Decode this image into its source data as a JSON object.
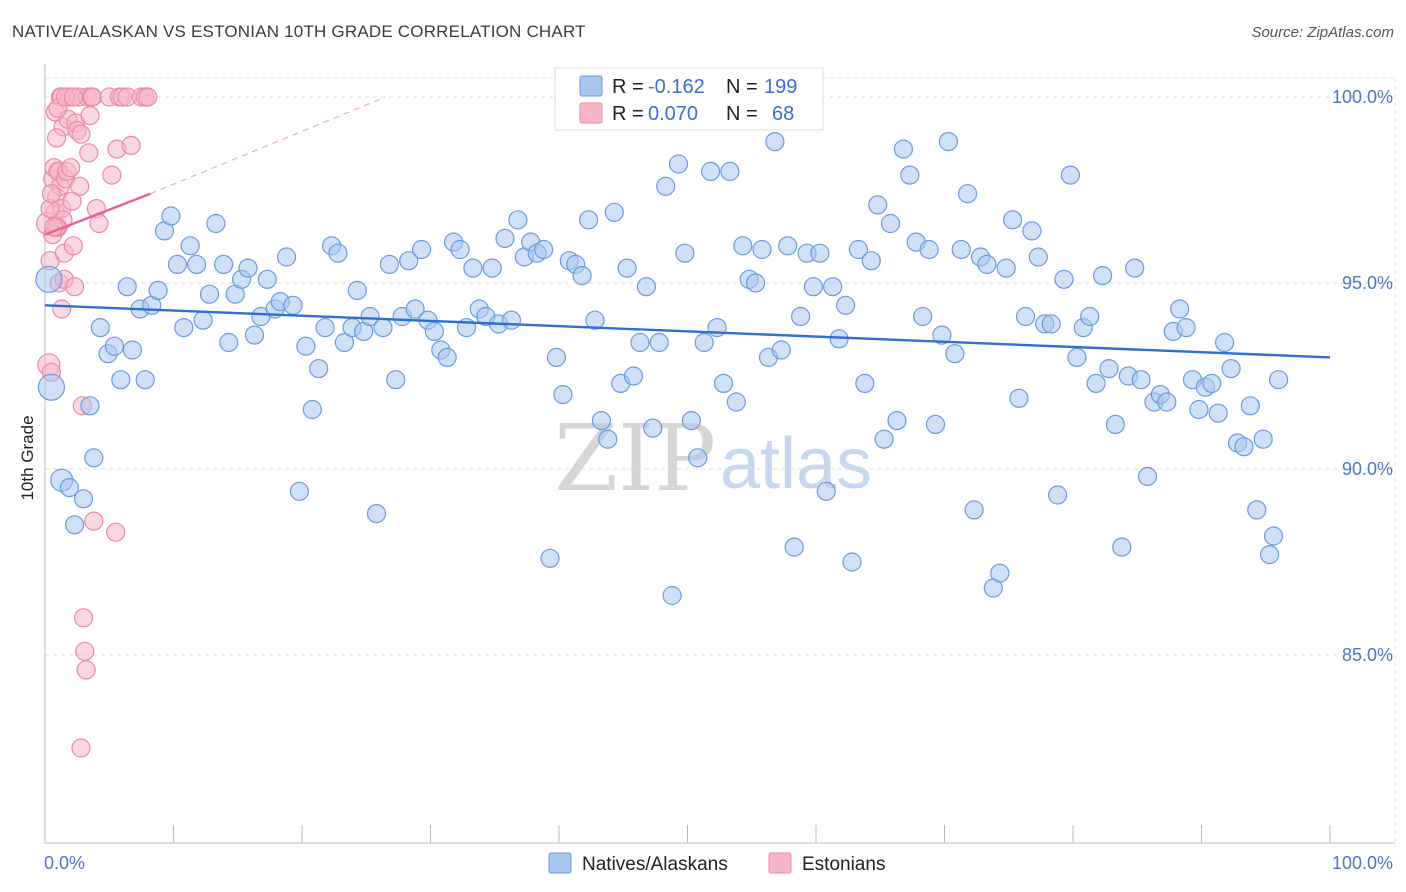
{
  "title": "NATIVE/ALASKAN VS ESTONIAN 10TH GRADE CORRELATION CHART",
  "source": "Source: ZipAtlas.com",
  "watermark": {
    "zip": "ZIP",
    "atlas": "atlas"
  },
  "legend_top": {
    "rows": [
      {
        "r_label": "R =",
        "r_value": "-0.162",
        "n_label": "N =",
        "n_value": "199",
        "color": "#a9c6ef"
      },
      {
        "r_label": "R =",
        "r_value": "0.070",
        "n_label": "N =",
        "n_value": "68",
        "color": "#f7b6c8"
      }
    ]
  },
  "chart_data": {
    "type": "scatter",
    "title": "NATIVE/ALASKAN VS ESTONIAN 10TH GRADE CORRELATION CHART",
    "xlabel": "",
    "ylabel": "10th Grade",
    "xlim": [
      0,
      100
    ],
    "ylim": [
      80.4,
      100.8
    ],
    "x_tick_labels": [
      "0.0%",
      "100.0%"
    ],
    "y_ticks": [
      {
        "value": 100.0,
        "label": "100.0%"
      },
      {
        "value": 95.0,
        "label": "95.0%"
      },
      {
        "value": 90.0,
        "label": "90.0%"
      },
      {
        "value": 85.0,
        "label": "85.0%"
      }
    ],
    "grid": true,
    "legend_position": "top-center",
    "series": [
      {
        "name": "Natives/Alaskans",
        "color": "#6a9be0",
        "fill": "#a9c6ef",
        "trend": {
          "x": [
            0,
            100
          ],
          "y": [
            94.4,
            93.0
          ],
          "color": "#2f6fcf"
        },
        "points": [
          [
            0.3,
            95.1
          ],
          [
            0.5,
            92.2
          ],
          [
            1.3,
            89.7
          ],
          [
            1.9,
            89.5
          ],
          [
            2.3,
            88.5
          ],
          [
            3.0,
            89.2
          ],
          [
            3.5,
            91.7
          ],
          [
            3.8,
            90.3
          ],
          [
            4.3,
            93.8
          ],
          [
            4.9,
            93.1
          ],
          [
            5.4,
            93.3
          ],
          [
            5.9,
            92.4
          ],
          [
            6.4,
            94.9
          ],
          [
            6.8,
            93.2
          ],
          [
            7.4,
            94.3
          ],
          [
            7.8,
            92.4
          ],
          [
            8.3,
            94.4
          ],
          [
            8.8,
            94.8
          ],
          [
            9.3,
            96.4
          ],
          [
            9.8,
            96.8
          ],
          [
            10.3,
            95.5
          ],
          [
            10.8,
            93.8
          ],
          [
            11.3,
            96.0
          ],
          [
            11.8,
            95.5
          ],
          [
            12.3,
            94.0
          ],
          [
            12.8,
            94.7
          ],
          [
            13.3,
            96.6
          ],
          [
            13.9,
            95.5
          ],
          [
            14.3,
            93.4
          ],
          [
            14.8,
            94.7
          ],
          [
            15.3,
            95.1
          ],
          [
            15.8,
            95.4
          ],
          [
            16.3,
            93.6
          ],
          [
            16.8,
            94.1
          ],
          [
            17.3,
            95.1
          ],
          [
            17.9,
            94.3
          ],
          [
            18.3,
            94.5
          ],
          [
            18.8,
            95.7
          ],
          [
            19.3,
            94.4
          ],
          [
            19.8,
            89.4
          ],
          [
            20.3,
            93.3
          ],
          [
            20.8,
            91.6
          ],
          [
            21.3,
            92.7
          ],
          [
            21.8,
            93.8
          ],
          [
            22.3,
            96.0
          ],
          [
            22.8,
            95.8
          ],
          [
            23.3,
            93.4
          ],
          [
            23.9,
            93.8
          ],
          [
            24.3,
            94.8
          ],
          [
            24.8,
            93.7
          ],
          [
            25.3,
            94.1
          ],
          [
            25.8,
            88.8
          ],
          [
            26.3,
            93.8
          ],
          [
            26.8,
            95.5
          ],
          [
            27.3,
            92.4
          ],
          [
            27.8,
            94.1
          ],
          [
            28.3,
            95.6
          ],
          [
            28.8,
            94.3
          ],
          [
            29.3,
            95.9
          ],
          [
            29.8,
            94.0
          ],
          [
            30.3,
            93.7
          ],
          [
            30.8,
            93.2
          ],
          [
            31.3,
            93.0
          ],
          [
            31.8,
            96.1
          ],
          [
            32.3,
            95.9
          ],
          [
            32.8,
            93.8
          ],
          [
            33.3,
            95.4
          ],
          [
            33.8,
            94.3
          ],
          [
            34.3,
            94.1
          ],
          [
            34.8,
            95.4
          ],
          [
            35.3,
            93.9
          ],
          [
            35.8,
            96.2
          ],
          [
            36.3,
            94.0
          ],
          [
            36.8,
            96.7
          ],
          [
            37.3,
            95.7
          ],
          [
            37.8,
            96.1
          ],
          [
            38.3,
            95.8
          ],
          [
            38.8,
            95.9
          ],
          [
            39.3,
            87.6
          ],
          [
            39.8,
            93.0
          ],
          [
            40.3,
            92.0
          ],
          [
            40.8,
            95.6
          ],
          [
            41.3,
            95.5
          ],
          [
            41.8,
            95.2
          ],
          [
            42.3,
            96.7
          ],
          [
            42.8,
            94.0
          ],
          [
            43.3,
            91.3
          ],
          [
            43.8,
            90.8
          ],
          [
            44.3,
            96.9
          ],
          [
            44.8,
            92.3
          ],
          [
            45.3,
            95.4
          ],
          [
            45.8,
            92.5
          ],
          [
            46.3,
            93.4
          ],
          [
            46.8,
            94.9
          ],
          [
            47.3,
            91.1
          ],
          [
            47.8,
            93.4
          ],
          [
            48.3,
            97.6
          ],
          [
            48.8,
            86.6
          ],
          [
            49.3,
            98.2
          ],
          [
            49.8,
            95.8
          ],
          [
            50.3,
            91.3
          ],
          [
            50.8,
            90.3
          ],
          [
            51.3,
            93.4
          ],
          [
            51.8,
            98.0
          ],
          [
            52.3,
            93.8
          ],
          [
            52.8,
            92.3
          ],
          [
            53.3,
            98.0
          ],
          [
            53.8,
            91.8
          ],
          [
            54.3,
            96.0
          ],
          [
            54.8,
            95.1
          ],
          [
            55.3,
            95.0
          ],
          [
            55.8,
            95.9
          ],
          [
            56.3,
            93.0
          ],
          [
            56.8,
            98.8
          ],
          [
            57.3,
            93.2
          ],
          [
            57.8,
            96.0
          ],
          [
            58.3,
            87.9
          ],
          [
            58.8,
            94.1
          ],
          [
            59.3,
            95.8
          ],
          [
            59.8,
            94.9
          ],
          [
            60.3,
            95.8
          ],
          [
            60.8,
            89.4
          ],
          [
            61.3,
            94.9
          ],
          [
            61.8,
            93.5
          ],
          [
            62.3,
            94.4
          ],
          [
            62.8,
            87.5
          ],
          [
            63.3,
            95.9
          ],
          [
            63.8,
            92.3
          ],
          [
            64.3,
            95.6
          ],
          [
            64.8,
            97.1
          ],
          [
            65.3,
            90.8
          ],
          [
            65.8,
            96.6
          ],
          [
            66.3,
            91.3
          ],
          [
            66.8,
            98.6
          ],
          [
            67.3,
            97.9
          ],
          [
            67.8,
            96.1
          ],
          [
            68.3,
            94.1
          ],
          [
            68.8,
            95.9
          ],
          [
            69.3,
            91.2
          ],
          [
            69.8,
            93.6
          ],
          [
            70.3,
            98.8
          ],
          [
            70.8,
            93.1
          ],
          [
            71.3,
            95.9
          ],
          [
            71.8,
            97.4
          ],
          [
            72.3,
            88.9
          ],
          [
            72.8,
            95.7
          ],
          [
            73.3,
            95.5
          ],
          [
            73.8,
            86.8
          ],
          [
            74.3,
            87.2
          ],
          [
            74.8,
            95.4
          ],
          [
            75.3,
            96.7
          ],
          [
            75.8,
            91.9
          ],
          [
            76.3,
            94.1
          ],
          [
            76.8,
            96.4
          ],
          [
            77.3,
            95.7
          ],
          [
            77.8,
            93.9
          ],
          [
            78.3,
            93.9
          ],
          [
            78.8,
            89.3
          ],
          [
            79.3,
            95.1
          ],
          [
            79.8,
            97.9
          ],
          [
            80.3,
            93.0
          ],
          [
            80.8,
            93.8
          ],
          [
            81.3,
            94.1
          ],
          [
            81.8,
            92.3
          ],
          [
            82.3,
            95.2
          ],
          [
            82.8,
            92.7
          ],
          [
            83.3,
            91.2
          ],
          [
            83.8,
            87.9
          ],
          [
            84.3,
            92.5
          ],
          [
            84.8,
            95.4
          ],
          [
            85.3,
            92.4
          ],
          [
            85.8,
            89.8
          ],
          [
            86.3,
            91.8
          ],
          [
            86.8,
            92.0
          ],
          [
            87.3,
            91.8
          ],
          [
            87.8,
            93.7
          ],
          [
            88.3,
            94.3
          ],
          [
            88.8,
            93.8
          ],
          [
            89.3,
            92.4
          ],
          [
            89.8,
            91.6
          ],
          [
            90.3,
            92.2
          ],
          [
            90.8,
            92.3
          ],
          [
            91.3,
            91.5
          ],
          [
            91.8,
            93.4
          ],
          [
            92.3,
            92.7
          ],
          [
            92.8,
            90.7
          ],
          [
            93.3,
            90.6
          ],
          [
            93.8,
            91.7
          ],
          [
            94.3,
            88.9
          ],
          [
            94.8,
            90.8
          ],
          [
            95.3,
            87.7
          ],
          [
            95.6,
            88.2
          ],
          [
            96.0,
            92.4
          ]
        ]
      },
      {
        "name": "Estonians",
        "color": "#e98aa7",
        "fill": "#f7b6c8",
        "trend": {
          "x": [
            0,
            8.2
          ],
          "y": [
            96.3,
            97.4
          ],
          "color": "#e8608d",
          "dashed_extension_to": [
            26.5,
            100.0
          ]
        },
        "points": [
          [
            0.2,
            96.6
          ],
          [
            0.4,
            95.6
          ],
          [
            0.3,
            92.8
          ],
          [
            0.5,
            92.6
          ],
          [
            0.6,
            97.8
          ],
          [
            0.7,
            98.1
          ],
          [
            0.8,
            96.9
          ],
          [
            0.9,
            97.3
          ],
          [
            1.0,
            96.5
          ],
          [
            1.1,
            98.0
          ],
          [
            1.2,
            100.0
          ],
          [
            1.3,
            100.0
          ],
          [
            1.4,
            99.2
          ],
          [
            0.8,
            99.6
          ],
          [
            1.0,
            98.0
          ],
          [
            1.2,
            97.6
          ],
          [
            1.3,
            97.0
          ],
          [
            1.4,
            96.7
          ],
          [
            1.5,
            95.8
          ],
          [
            0.6,
            96.3
          ],
          [
            0.9,
            96.5
          ],
          [
            1.1,
            95.0
          ],
          [
            1.3,
            94.3
          ],
          [
            1.5,
            95.1
          ],
          [
            1.6,
            97.8
          ],
          [
            1.7,
            98.0
          ],
          [
            1.8,
            99.4
          ],
          [
            1.9,
            100.0
          ],
          [
            2.0,
            98.1
          ],
          [
            2.1,
            97.2
          ],
          [
            2.2,
            96.0
          ],
          [
            2.3,
            94.9
          ],
          [
            2.4,
            99.3
          ],
          [
            2.5,
            99.1
          ],
          [
            2.6,
            100.0
          ],
          [
            2.7,
            97.6
          ],
          [
            2.8,
            99.0
          ],
          [
            2.9,
            91.7
          ],
          [
            3.0,
            86.0
          ],
          [
            3.1,
            85.1
          ],
          [
            3.2,
            84.6
          ],
          [
            2.8,
            82.5
          ],
          [
            3.3,
            100.0
          ],
          [
            3.4,
            98.5
          ],
          [
            3.5,
            99.5
          ],
          [
            3.6,
            100.0
          ],
          [
            3.7,
            100.0
          ],
          [
            3.8,
            88.6
          ],
          [
            4.0,
            97.0
          ],
          [
            4.2,
            96.6
          ],
          [
            5.0,
            100.0
          ],
          [
            5.2,
            97.9
          ],
          [
            5.5,
            88.3
          ],
          [
            5.6,
            98.6
          ],
          [
            5.8,
            100.0
          ],
          [
            6.0,
            100.0
          ],
          [
            6.4,
            100.0
          ],
          [
            6.7,
            98.7
          ],
          [
            7.5,
            100.0
          ],
          [
            7.8,
            100.0
          ],
          [
            8.0,
            100.0
          ],
          [
            0.4,
            97.0
          ],
          [
            0.5,
            97.4
          ],
          [
            0.7,
            96.5
          ],
          [
            1.0,
            99.7
          ],
          [
            1.6,
            100.0
          ],
          [
            2.2,
            100.0
          ],
          [
            0.9,
            98.9
          ]
        ]
      }
    ]
  },
  "bottom_legend": {
    "items": [
      {
        "label": "Natives/Alaskans",
        "fill": "#a9c6ef",
        "stroke": "#6a9be0"
      },
      {
        "label": "Estonians",
        "fill": "#f7b6c8",
        "stroke": "#e98aa7"
      }
    ]
  }
}
